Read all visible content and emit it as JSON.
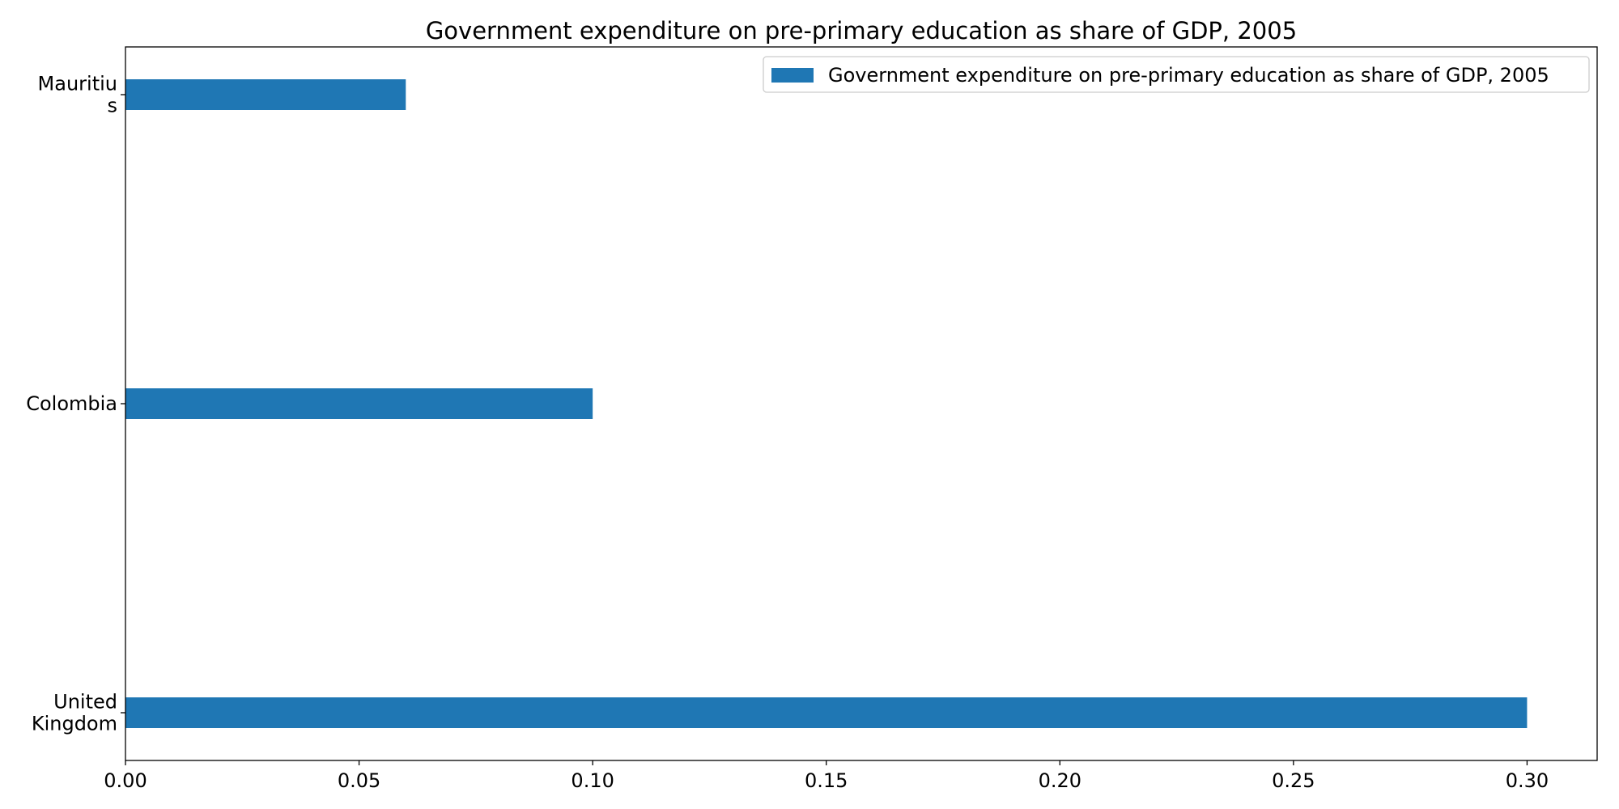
{
  "chart_data": {
    "type": "bar",
    "orientation": "horizontal",
    "title": "Government expenditure on pre-primary education as share of GDP, 2005",
    "xlabel": "",
    "ylabel": "",
    "categories": [
      [
        "Mauritiu",
        "s"
      ],
      [
        "Colombia"
      ],
      [
        "United",
        "Kingdom"
      ]
    ],
    "series": [
      {
        "name": "Government expenditure on pre-primary education as share of GDP, 2005",
        "color": "#1f77b4",
        "values": [
          0.06,
          0.1,
          0.3
        ]
      }
    ],
    "xlim": [
      0,
      0.315
    ],
    "xticks": [
      0,
      0.05,
      0.1,
      0.15,
      0.2,
      0.25,
      0.3
    ],
    "xtick_labels": [
      "0.00",
      "0.05",
      "0.10",
      "0.15",
      "0.20",
      "0.25",
      "0.30"
    ],
    "grid": false,
    "legend_position": "upper right"
  }
}
